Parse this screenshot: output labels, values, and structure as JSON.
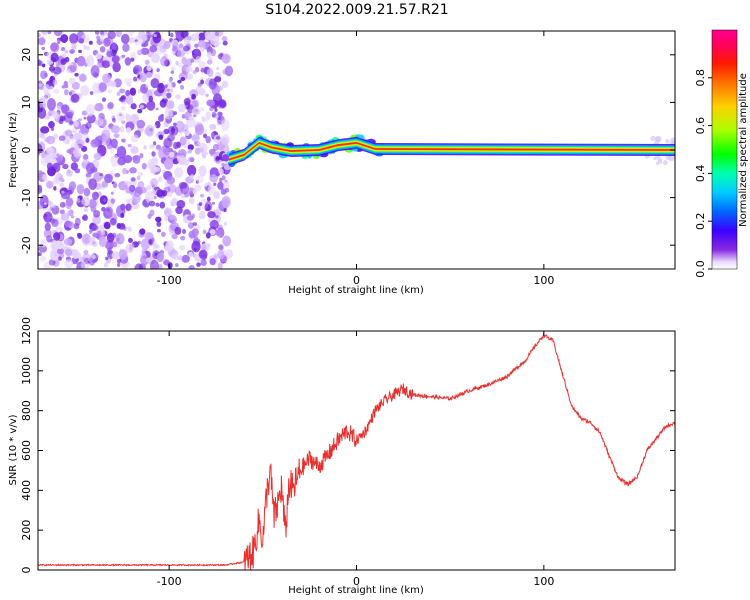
{
  "figure": {
    "title": "S104.2022.009.21.57.R21"
  },
  "chart_data": [
    {
      "type": "heatmap",
      "title": "S104.2022.009.21.57.R21",
      "xlabel": "Height of straight line (km)",
      "ylabel": "Frequency (Hz)",
      "xlim": [
        -170,
        170
      ],
      "ylim": [
        -25,
        25
      ],
      "x_ticks": [
        -100,
        0,
        100
      ],
      "y_ticks": [
        -20,
        -10,
        0,
        10,
        20
      ],
      "colorbar": {
        "label": "Normalized spectral amplitude",
        "range": [
          0,
          1
        ],
        "ticks": [
          0.0,
          0.2,
          0.4,
          0.6,
          0.8
        ],
        "colormap": "rainbow (purple-blue-cyan-green-yellow-orange-red-magenta)"
      },
      "regions": {
        "noise_x_range": [
          -170,
          -68
        ],
        "signal_start_x": -68,
        "signal_center_track": [
          {
            "x": -68,
            "y": -2
          },
          {
            "x": -60,
            "y": -1
          },
          {
            "x": -52,
            "y": 1.5
          },
          {
            "x": -45,
            "y": 0.5
          },
          {
            "x": -35,
            "y": -0.2
          },
          {
            "x": -20,
            "y": 0
          },
          {
            "x": -10,
            "y": 1
          },
          {
            "x": 0,
            "y": 1.5
          },
          {
            "x": 10,
            "y": 0.2
          },
          {
            "x": 170,
            "y": 0
          }
        ]
      }
    },
    {
      "type": "line",
      "xlabel": "Height of straight line (km)",
      "ylabel": "SNR (10 * v/v)",
      "xlim": [
        -170,
        170
      ],
      "ylim": [
        0,
        1200
      ],
      "x_ticks": [
        -100,
        0,
        100
      ],
      "y_ticks": [
        0,
        200,
        400,
        600,
        800,
        1000,
        1200
      ],
      "series": [
        {
          "color": "#e8312f",
          "x": [
            -170,
            -150,
            -130,
            -110,
            -90,
            -70,
            -60,
            -55,
            -52,
            -50,
            -48,
            -46,
            -44,
            -42,
            -40,
            -38,
            -36,
            -34,
            -30,
            -25,
            -20,
            -15,
            -10,
            -5,
            0,
            5,
            10,
            15,
            20,
            25,
            30,
            40,
            50,
            60,
            70,
            80,
            90,
            95,
            100,
            105,
            110,
            115,
            120,
            125,
            130,
            135,
            140,
            145,
            150,
            155,
            160,
            165,
            170
          ],
          "y": [
            25,
            25,
            25,
            25,
            25,
            25,
            40,
            90,
            250,
            150,
            380,
            500,
            260,
            330,
            420,
            180,
            440,
            400,
            500,
            560,
            520,
            580,
            650,
            700,
            650,
            700,
            800,
            850,
            880,
            910,
            880,
            870,
            860,
            900,
            930,
            970,
            1050,
            1120,
            1180,
            1150,
            980,
            820,
            760,
            740,
            690,
            570,
            460,
            430,
            470,
            600,
            660,
            720,
            740
          ]
        }
      ]
    }
  ]
}
